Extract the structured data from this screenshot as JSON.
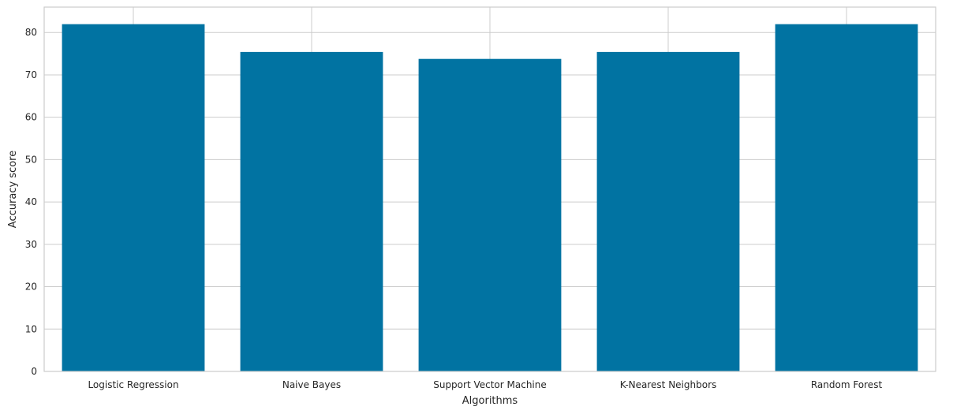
{
  "chart_data": {
    "type": "bar",
    "categories": [
      "Logistic Regression",
      "Naive Bayes",
      "Support Vector Machine",
      "K-Nearest Neighbors",
      "Random Forest"
    ],
    "values": [
      81.97,
      75.41,
      73.77,
      75.41,
      81.97
    ],
    "title": "",
    "xlabel": "Algorithms",
    "ylabel": "Accuracy score",
    "ylim": [
      0,
      86
    ],
    "yticks": [
      0,
      10,
      20,
      30,
      40,
      50,
      60,
      70,
      80
    ],
    "grid": true,
    "bar_color": "#0173a2",
    "grid_color": "#cccccc",
    "axes_color": "#cccccc"
  }
}
